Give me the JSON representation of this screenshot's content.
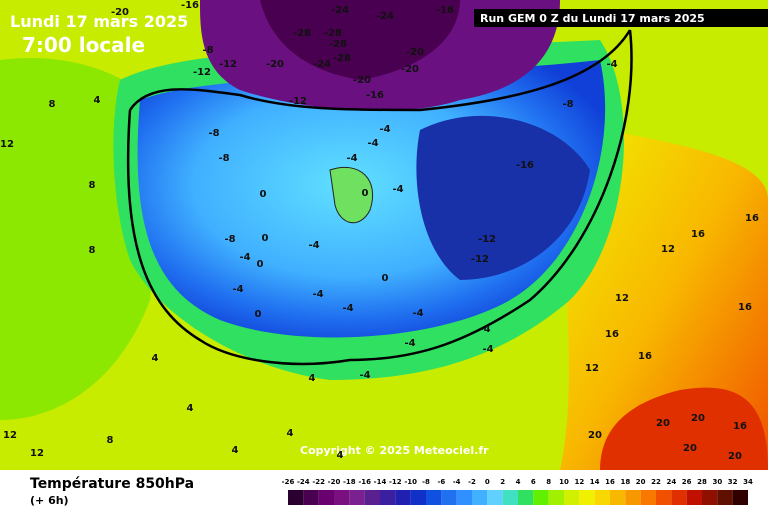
{
  "header": {
    "date": "Lundi 17 mars 2025",
    "time": "7:00 locale"
  },
  "run": "Run GEM 0 Z du Lundi 17 mars 2025",
  "copyright": "Copyright © 2025 Meteociel.fr",
  "footer": {
    "title": "Température 850hPa",
    "step": "(+ 6h)"
  },
  "colorbar": {
    "ticks": [
      -26,
      -24,
      -22,
      -20,
      -18,
      -16,
      -14,
      -12,
      -10,
      -8,
      -6,
      -4,
      -2,
      0,
      2,
      4,
      6,
      8,
      10,
      12,
      14,
      16,
      18,
      20,
      22,
      24,
      26,
      28,
      30,
      32,
      34
    ],
    "colors": [
      "#2a0030",
      "#4a0050",
      "#6a0070",
      "#7a1080",
      "#7a2090",
      "#5a2090",
      "#3a20a0",
      "#2020b0",
      "#1030c8",
      "#1050e0",
      "#2070f0",
      "#3090ff",
      "#40b0ff",
      "#60d0ff",
      "#40e0c0",
      "#30e060",
      "#60f000",
      "#a0f000",
      "#d0f000",
      "#f0f000",
      "#f8d800",
      "#f8b800",
      "#f89800",
      "#f87800",
      "#f05000",
      "#e03000",
      "#c01000",
      "#901000",
      "#601000",
      "#300000"
    ]
  },
  "contour_labels": [
    -20,
    -16,
    -24,
    -24,
    -16,
    -28,
    -28,
    -28,
    -28,
    -24,
    -20,
    -20,
    -16,
    -12,
    -12,
    -8,
    -20,
    -20,
    -12,
    -8,
    -8,
    -8,
    -4,
    -4,
    0,
    0,
    0,
    0,
    -4,
    0,
    -4,
    -4,
    -4,
    -4,
    -16,
    -12,
    -12,
    -8,
    -4,
    0,
    -4,
    -4,
    -4,
    -4,
    -4,
    -4,
    4,
    8,
    12,
    8,
    4,
    4,
    4,
    4,
    12,
    12,
    8,
    12,
    12,
    16,
    16,
    12,
    16,
    16,
    16,
    20,
    20,
    20,
    20,
    20,
    16,
    -4,
    4,
    4,
    8
  ]
}
